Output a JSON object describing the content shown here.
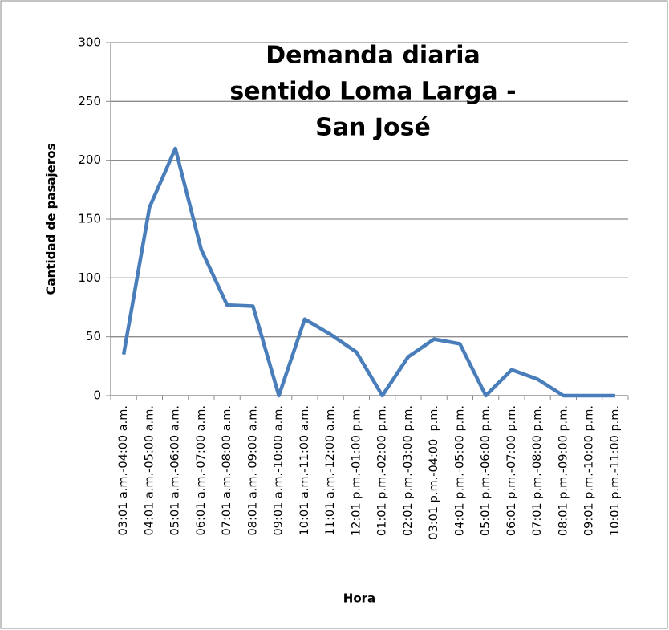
{
  "chart_data": {
    "type": "line",
    "title": [
      "Demanda diaria",
      "sentido Loma Larga -",
      "San José"
    ],
    "x_label": "Hora",
    "y_label": "Cantidad de pasajeros",
    "categories": [
      "03:01 a.m.-04:00 a.m.",
      "04:01 a.m.-05:00 a.m.",
      "05:01 a.m.-06:00 a.m.",
      "06:01 a.m.-07:00 a.m.",
      "07:01 a.m.-08:00 a.m.",
      "08:01 a.m.-09:00 a.m.",
      "09:01 a.m.-10:00 a.m.",
      "10:01 a.m.-11:00 a.m.",
      "11:01 a.m.-12:00 a.m.",
      "12:01 p.m.-01:00 p.m.",
      "01:01 p.m.-02:00 p.m.",
      "02:01 p.m.-03:00 p.m.",
      "03:01 p.m.-04:00  p.m.",
      "04:01 p.m.-05:00 p.m.",
      "05:01 p.m.-06:00 p.m.",
      "06:01 p.m.-07:00 p.m.",
      "07:01 p.m.-08:00 p.m.",
      "08:01 p.m.-09:00 p.m.",
      "09:01 p.m.-10:00 p.m.",
      "10:01 p.m.-11:00 p.m."
    ],
    "values": [
      35,
      160,
      210,
      124,
      77,
      76,
      0,
      65,
      52,
      37,
      0,
      33,
      48,
      44,
      0,
      22,
      14,
      0,
      0,
      0
    ],
    "color": "#4a7ebb",
    "ylim": [
      0,
      300
    ],
    "yticks": [
      0,
      50,
      100,
      150,
      200,
      250,
      300
    ],
    "grid": true
  }
}
